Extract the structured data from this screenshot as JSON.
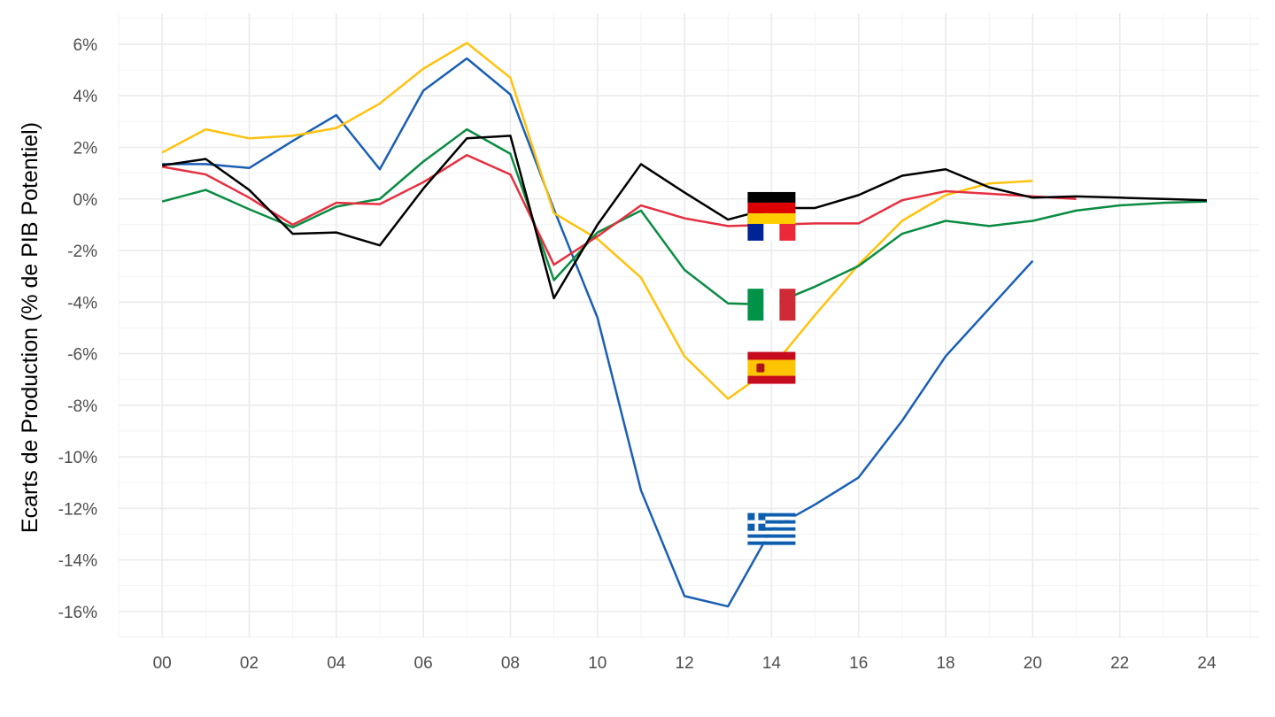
{
  "chart_data": {
    "type": "line",
    "title": "",
    "xlabel": "",
    "ylabel": "Ecarts de Production (% de PIB Potentiel)",
    "x_ticks": [
      "00",
      "02",
      "04",
      "06",
      "08",
      "10",
      "12",
      "14",
      "16",
      "18",
      "20",
      "22",
      "24"
    ],
    "x_tick_values": [
      2000,
      2002,
      2004,
      2006,
      2008,
      2010,
      2012,
      2014,
      2016,
      2018,
      2020,
      2022,
      2024
    ],
    "y_ticks": [
      "6%",
      "4%",
      "2%",
      "0%",
      "-2%",
      "-4%",
      "-6%",
      "-8%",
      "-10%",
      "-12%",
      "-14%",
      "-16%"
    ],
    "y_tick_values": [
      6,
      4,
      2,
      0,
      -2,
      -4,
      -6,
      -8,
      -10,
      -12,
      -14,
      -16
    ],
    "xlim": [
      1999,
      2025.2
    ],
    "ylim": [
      -17,
      7.2
    ],
    "grid": true,
    "legend": "none (flag icons)",
    "series": [
      {
        "color": "#1a5fb4",
        "flag": "greece-flag",
        "x": [
          2000,
          2001,
          2002,
          2003,
          2004,
          2005,
          2006,
          2007,
          2008,
          2009,
          2010,
          2011,
          2012,
          2013,
          2014,
          2015,
          2016,
          2017,
          2018,
          2019,
          2020
        ],
        "values": [
          1.35,
          1.35,
          1.2,
          2.25,
          3.25,
          1.15,
          4.2,
          5.45,
          4.05,
          -0.4,
          -4.6,
          -11.3,
          -15.4,
          -15.8,
          -12.8,
          -11.85,
          -10.8,
          -8.6,
          -6.1,
          -4.25,
          -2.4
        ]
      },
      {
        "color": "#ffc20e",
        "flag": "spain-flag",
        "x": [
          2000,
          2001,
          2002,
          2003,
          2004,
          2005,
          2006,
          2007,
          2008,
          2009,
          2010,
          2011,
          2012,
          2013,
          2014,
          2015,
          2016,
          2017,
          2018,
          2019,
          2020
        ],
        "values": [
          1.8,
          2.7,
          2.35,
          2.45,
          2.75,
          3.7,
          5.05,
          6.05,
          4.7,
          -0.55,
          -1.55,
          -3.05,
          -6.1,
          -7.75,
          -6.55,
          -4.5,
          -2.55,
          -0.85,
          0.15,
          0.6,
          0.7
        ]
      },
      {
        "color": "#0b8c43",
        "flag": "italy-flag",
        "x": [
          2000,
          2001,
          2002,
          2003,
          2004,
          2005,
          2006,
          2007,
          2008,
          2009,
          2010,
          2011,
          2012,
          2013,
          2014,
          2015,
          2016,
          2017,
          2018,
          2019,
          2020,
          2021,
          2022,
          2023,
          2024
        ],
        "values": [
          -0.1,
          0.35,
          -0.4,
          -1.1,
          -0.3,
          0.0,
          1.45,
          2.7,
          1.75,
          -3.15,
          -1.3,
          -0.45,
          -2.75,
          -4.05,
          -4.1,
          -3.4,
          -2.6,
          -1.35,
          -0.85,
          -1.05,
          -0.85,
          -0.45,
          -0.25,
          -0.15,
          -0.1
        ]
      },
      {
        "color": "#e53040",
        "flag": "france-flag",
        "x": [
          2000,
          2001,
          2002,
          2003,
          2004,
          2005,
          2006,
          2007,
          2008,
          2009,
          2010,
          2011,
          2012,
          2013,
          2014,
          2015,
          2016,
          2017,
          2018,
          2019,
          2020,
          2021
        ],
        "values": [
          1.25,
          0.95,
          0.05,
          -1.0,
          -0.15,
          -0.2,
          0.65,
          1.7,
          0.95,
          -2.55,
          -1.45,
          -0.25,
          -0.75,
          -1.05,
          -1.0,
          -0.95,
          -0.95,
          -0.05,
          0.3,
          0.2,
          0.1,
          0.0
        ]
      },
      {
        "color": "#000000",
        "flag": "germany-flag",
        "x": [
          2000,
          2001,
          2002,
          2003,
          2004,
          2005,
          2006,
          2007,
          2008,
          2009,
          2010,
          2011,
          2012,
          2013,
          2014,
          2015,
          2016,
          2017,
          2018,
          2019,
          2020,
          2021,
          2022,
          2023,
          2024
        ],
        "values": [
          1.3,
          1.55,
          0.35,
          -1.35,
          -1.3,
          -1.8,
          0.4,
          2.35,
          2.45,
          -3.85,
          -1.0,
          1.35,
          0.25,
          -0.8,
          -0.35,
          -0.35,
          0.15,
          0.9,
          1.15,
          0.45,
          0.05,
          0.1,
          0.05,
          0.0,
          -0.05
        ]
      }
    ]
  }
}
